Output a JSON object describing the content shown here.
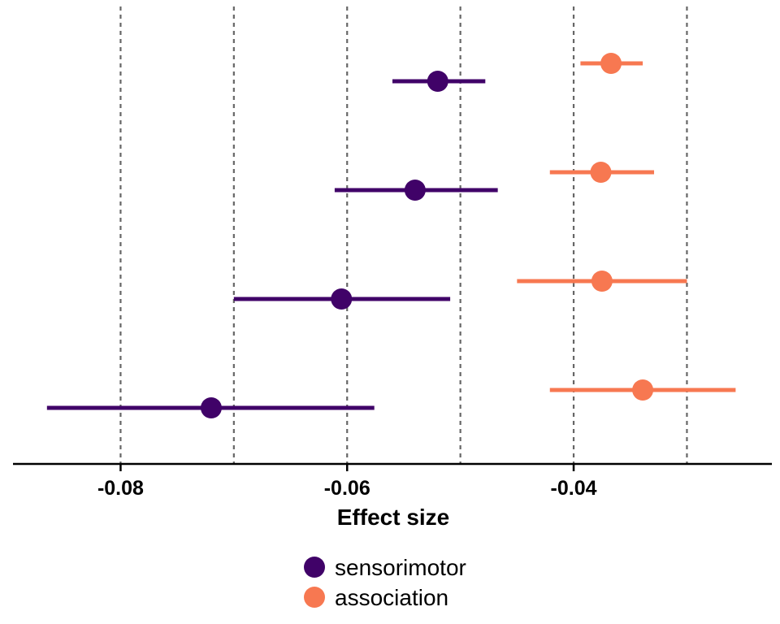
{
  "chart_data": {
    "type": "forest",
    "xlabel": "Effect size",
    "xlim": [
      -0.0895,
      -0.0225
    ],
    "xticks": [
      -0.08,
      -0.06,
      -0.04
    ],
    "xtick_labels": [
      "-0.08",
      "-0.06",
      "-0.04"
    ],
    "vlines": [
      -0.08,
      -0.07,
      -0.06,
      -0.05,
      -0.04,
      -0.03
    ],
    "grid": "dashed vertical",
    "legend_position": "bottom",
    "rows": 4,
    "series": [
      {
        "name": "sensorimotor",
        "color": "#400268",
        "points": [
          {
            "row": 1,
            "estimate": -0.052,
            "lower": -0.056,
            "upper": -0.0478
          },
          {
            "row": 2,
            "estimate": -0.054,
            "lower": -0.0611,
            "upper": -0.0467
          },
          {
            "row": 3,
            "estimate": -0.0605,
            "lower": -0.07,
            "upper": -0.0509
          },
          {
            "row": 4,
            "estimate": -0.072,
            "lower": -0.0865,
            "upper": -0.0576
          }
        ]
      },
      {
        "name": "association",
        "color": "#F77851",
        "points": [
          {
            "row": 1,
            "estimate": -0.0367,
            "lower": -0.0394,
            "upper": -0.0339
          },
          {
            "row": 2,
            "estimate": -0.0376,
            "lower": -0.0421,
            "upper": -0.0329
          },
          {
            "row": 3,
            "estimate": -0.0375,
            "lower": -0.045,
            "upper": -0.03
          },
          {
            "row": 4,
            "estimate": -0.0339,
            "lower": -0.0421,
            "upper": -0.0257
          }
        ]
      }
    ]
  }
}
